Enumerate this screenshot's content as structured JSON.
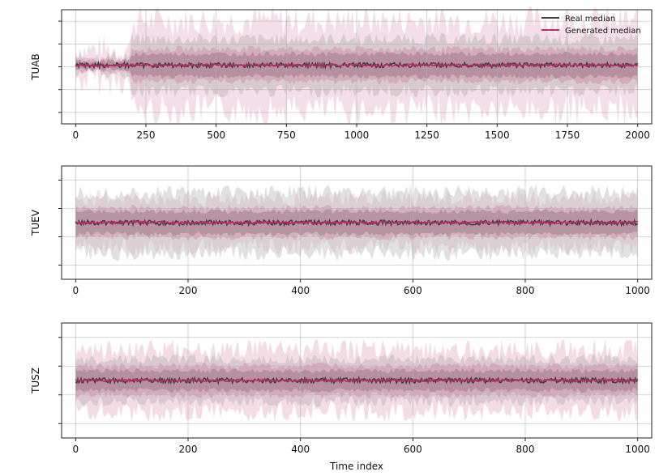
{
  "chart_data": [
    {
      "type": "line",
      "ylabel": "TUAB",
      "xlim": [
        -50,
        2050
      ],
      "x_ticks": [
        0,
        250,
        500,
        750,
        1000,
        1250,
        1500,
        1750,
        2000
      ],
      "x_range": [
        0,
        2000
      ],
      "grid": true,
      "legend": {
        "position": "top-right",
        "entries": [
          {
            "label": "Real median",
            "color": "#3f3f3f"
          },
          {
            "label": "Generated median",
            "color": "#c2266e"
          }
        ]
      },
      "series": [
        {
          "name": "Real median",
          "color": "#3f3f3f",
          "role": "median_with_quantile_bands"
        },
        {
          "name": "Generated median",
          "color": "#c2266e",
          "role": "median_with_quantile_bands"
        }
      ]
    },
    {
      "type": "line",
      "ylabel": "TUEV",
      "xlim": [
        -25,
        1025
      ],
      "x_ticks": [
        0,
        200,
        400,
        600,
        800,
        1000
      ],
      "x_range": [
        0,
        1000
      ],
      "grid": true,
      "series": [
        {
          "name": "Real median",
          "color": "#3f3f3f"
        },
        {
          "name": "Generated median",
          "color": "#c2266e"
        }
      ]
    },
    {
      "type": "line",
      "ylabel": "TUSZ",
      "xlabel": "Time index",
      "xlim": [
        -25,
        1025
      ],
      "x_ticks": [
        0,
        200,
        400,
        600,
        800,
        1000
      ],
      "x_range": [
        0,
        1000
      ],
      "grid": true,
      "series": [
        {
          "name": "Real median",
          "color": "#3f3f3f"
        },
        {
          "name": "Generated median",
          "color": "#c2266e"
        }
      ]
    }
  ]
}
